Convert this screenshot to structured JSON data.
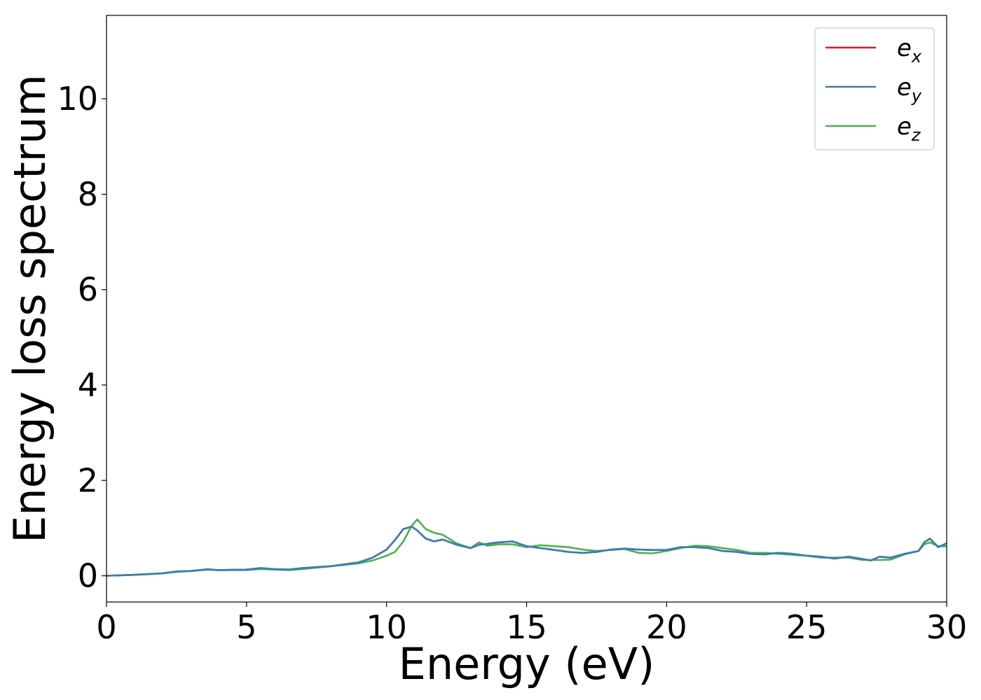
{
  "chart_data": {
    "type": "line",
    "title": "",
    "xlabel": "Energy (eV)",
    "ylabel": "Energy loss spectrum",
    "xlim": [
      0,
      30
    ],
    "ylim": [
      -0.55,
      11.75
    ],
    "xticks": [
      0,
      5,
      10,
      15,
      20,
      25,
      30
    ],
    "yticks": [
      0,
      2,
      4,
      6,
      8,
      10
    ],
    "grid": false,
    "legend_position": "top-right",
    "series": [
      {
        "name": "e_x",
        "label_base": "e",
        "label_sub": "x",
        "color": "#e41a1c",
        "x": [
          0,
          1,
          2,
          2.5,
          3,
          3.6,
          4,
          5,
          5.5,
          6,
          6.5,
          7,
          8,
          8.5,
          9,
          9.5,
          10,
          10.3,
          10.6,
          10.9,
          11.1,
          11.4,
          11.7,
          12,
          12.5,
          13,
          13.3,
          13.6,
          14,
          14.5,
          15,
          15.5,
          16,
          16.5,
          17,
          17.5,
          18,
          18.5,
          19,
          19.5,
          20,
          20.5,
          21,
          21.5,
          22,
          22.5,
          23,
          23.5,
          24,
          24.5,
          25,
          25.5,
          26,
          26.5,
          27,
          27.3,
          27.6,
          28,
          28.5,
          29,
          29.2,
          29.4,
          29.7,
          30
        ],
        "y": [
          0,
          0.02,
          0.05,
          0.09,
          0.1,
          0.13,
          0.12,
          0.13,
          0.16,
          0.14,
          0.13,
          0.16,
          0.2,
          0.24,
          0.28,
          0.38,
          0.55,
          0.75,
          0.98,
          1.03,
          0.95,
          0.78,
          0.72,
          0.76,
          0.65,
          0.58,
          0.65,
          0.67,
          0.7,
          0.72,
          0.62,
          0.58,
          0.54,
          0.5,
          0.48,
          0.5,
          0.55,
          0.57,
          0.55,
          0.54,
          0.54,
          0.6,
          0.6,
          0.58,
          0.52,
          0.5,
          0.46,
          0.45,
          0.48,
          0.46,
          0.42,
          0.4,
          0.36,
          0.4,
          0.35,
          0.32,
          0.4,
          0.38,
          0.46,
          0.52,
          0.7,
          0.78,
          0.6,
          0.68
        ]
      },
      {
        "name": "e_y",
        "label_base": "e",
        "label_sub": "y",
        "color": "#377eb8",
        "x": [
          0,
          1,
          2,
          2.5,
          3,
          3.6,
          4,
          5,
          5.5,
          6,
          6.5,
          7,
          8,
          8.5,
          9,
          9.5,
          10,
          10.3,
          10.6,
          10.9,
          11.1,
          11.4,
          11.7,
          12,
          12.5,
          13,
          13.3,
          13.6,
          14,
          14.5,
          15,
          15.5,
          16,
          16.5,
          17,
          17.5,
          18,
          18.5,
          19,
          19.5,
          20,
          20.5,
          21,
          21.5,
          22,
          22.5,
          23,
          23.5,
          24,
          24.5,
          25,
          25.5,
          26,
          26.5,
          27,
          27.3,
          27.6,
          28,
          28.5,
          29,
          29.2,
          29.4,
          29.7,
          30
        ],
        "y": [
          0,
          0.02,
          0.05,
          0.09,
          0.1,
          0.13,
          0.12,
          0.13,
          0.16,
          0.14,
          0.13,
          0.16,
          0.2,
          0.24,
          0.28,
          0.38,
          0.55,
          0.75,
          0.98,
          1.03,
          0.95,
          0.78,
          0.72,
          0.76,
          0.65,
          0.58,
          0.65,
          0.67,
          0.7,
          0.72,
          0.62,
          0.58,
          0.54,
          0.5,
          0.48,
          0.5,
          0.55,
          0.57,
          0.55,
          0.54,
          0.54,
          0.6,
          0.6,
          0.58,
          0.52,
          0.5,
          0.46,
          0.45,
          0.48,
          0.46,
          0.42,
          0.4,
          0.36,
          0.4,
          0.35,
          0.32,
          0.4,
          0.38,
          0.46,
          0.52,
          0.7,
          0.78,
          0.6,
          0.68
        ]
      },
      {
        "name": "e_z",
        "label_base": "e",
        "label_sub": "z",
        "color": "#4daf4a",
        "x": [
          0,
          1,
          2,
          2.5,
          3,
          3.6,
          4,
          5,
          5.5,
          6,
          6.5,
          7,
          8,
          8.5,
          9,
          9.5,
          10,
          10.3,
          10.6,
          10.9,
          11.1,
          11.4,
          11.7,
          12,
          12.5,
          13,
          13.3,
          13.6,
          14,
          14.5,
          15,
          15.5,
          16,
          16.5,
          17,
          17.5,
          18,
          18.5,
          19,
          19.5,
          20,
          20.5,
          21,
          21.5,
          22,
          22.5,
          23,
          23.5,
          24,
          24.5,
          25,
          25.5,
          26,
          26.5,
          27,
          27.3,
          27.6,
          28,
          28.5,
          29,
          29.2,
          29.4,
          29.7,
          30
        ],
        "y": [
          0,
          0.02,
          0.05,
          0.08,
          0.1,
          0.14,
          0.12,
          0.12,
          0.14,
          0.13,
          0.12,
          0.14,
          0.2,
          0.23,
          0.26,
          0.32,
          0.42,
          0.5,
          0.72,
          1.05,
          1.18,
          0.98,
          0.9,
          0.86,
          0.68,
          0.58,
          0.7,
          0.63,
          0.66,
          0.66,
          0.6,
          0.64,
          0.62,
          0.6,
          0.55,
          0.52,
          0.54,
          0.56,
          0.48,
          0.47,
          0.52,
          0.58,
          0.63,
          0.62,
          0.58,
          0.54,
          0.48,
          0.48,
          0.46,
          0.44,
          0.42,
          0.38,
          0.38,
          0.38,
          0.33,
          0.33,
          0.33,
          0.34,
          0.45,
          0.52,
          0.66,
          0.7,
          0.62,
          0.62
        ]
      }
    ]
  }
}
